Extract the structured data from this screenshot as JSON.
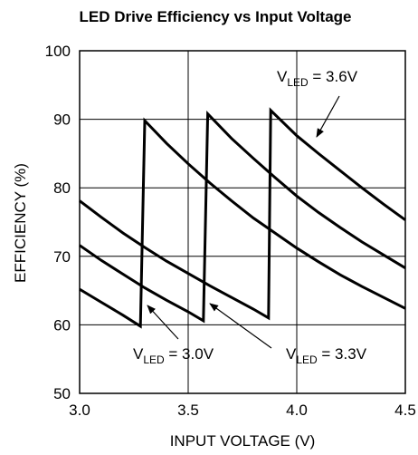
{
  "chart_data": {
    "type": "line",
    "title": "LED Drive Efficiency vs Input Voltage",
    "xlabel": "INPUT VOLTAGE (V)",
    "ylabel": "EFFICIENCY (%)",
    "xlim": [
      3.0,
      4.5
    ],
    "ylim": [
      50,
      100
    ],
    "x_ticks": [
      "3.0",
      "3.5",
      "4.0",
      "4.5"
    ],
    "y_ticks": [
      "50",
      "60",
      "70",
      "80",
      "90",
      "100"
    ],
    "grid": true,
    "series": [
      {
        "name": "3.0V",
        "points": [
          [
            3.0,
            65.2
          ],
          [
            3.1,
            63.3
          ],
          [
            3.2,
            61.4
          ],
          [
            3.28,
            59.8
          ],
          [
            3.3,
            89.8
          ],
          [
            3.4,
            86.5
          ],
          [
            3.5,
            83.5
          ],
          [
            3.6,
            80.7
          ],
          [
            3.7,
            78.1
          ],
          [
            3.8,
            75.6
          ],
          [
            3.9,
            73.4
          ],
          [
            4.0,
            71.2
          ],
          [
            4.1,
            69.2
          ],
          [
            4.2,
            67.3
          ],
          [
            4.3,
            65.6
          ],
          [
            4.4,
            64.0
          ],
          [
            4.5,
            62.4
          ]
        ]
      },
      {
        "name": "3.3V",
        "points": [
          [
            3.0,
            71.6
          ],
          [
            3.1,
            69.4
          ],
          [
            3.2,
            67.4
          ],
          [
            3.3,
            65.4
          ],
          [
            3.4,
            63.6
          ],
          [
            3.5,
            61.9
          ],
          [
            3.57,
            60.6
          ],
          [
            3.59,
            90.8
          ],
          [
            3.7,
            87.2
          ],
          [
            3.8,
            84.3
          ],
          [
            3.9,
            81.5
          ],
          [
            4.0,
            78.8
          ],
          [
            4.1,
            76.4
          ],
          [
            4.2,
            74.2
          ],
          [
            4.3,
            72.1
          ],
          [
            4.4,
            70.2
          ],
          [
            4.5,
            68.3
          ]
        ]
      },
      {
        "name": "3.6V",
        "points": [
          [
            3.0,
            78.1
          ],
          [
            3.1,
            75.7
          ],
          [
            3.2,
            73.4
          ],
          [
            3.3,
            71.3
          ],
          [
            3.4,
            69.3
          ],
          [
            3.5,
            67.5
          ],
          [
            3.6,
            65.7
          ],
          [
            3.7,
            64.0
          ],
          [
            3.8,
            62.3
          ],
          [
            3.87,
            61.0
          ],
          [
            3.88,
            91.3
          ],
          [
            4.0,
            87.6
          ],
          [
            4.1,
            85.0
          ],
          [
            4.2,
            82.5
          ],
          [
            4.3,
            80.0
          ],
          [
            4.4,
            77.6
          ],
          [
            4.5,
            75.3
          ]
        ]
      }
    ],
    "annotations": [
      {
        "main": "V",
        "sub": "LED",
        "rest": " = 3.6V"
      },
      {
        "main": "V",
        "sub": "LED",
        "rest": " = 3.0V"
      },
      {
        "main": "V",
        "sub": "LED",
        "rest": " = 3.3V"
      }
    ]
  }
}
